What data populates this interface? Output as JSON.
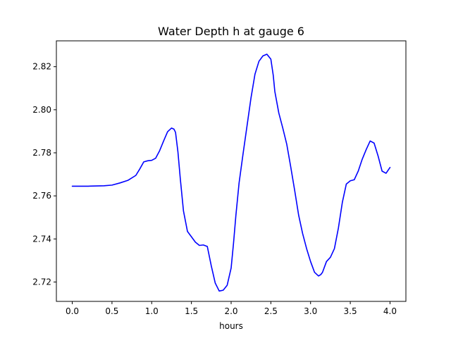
{
  "chart_data": {
    "type": "line",
    "title": "Water Depth h at gauge 6",
    "xlabel": "hours",
    "ylabel": "",
    "xlim": [
      -0.2,
      4.2
    ],
    "ylim": [
      2.711,
      2.832
    ],
    "xticks": [
      0.0,
      0.5,
      1.0,
      1.5,
      2.0,
      2.5,
      3.0,
      3.5,
      4.0
    ],
    "xtick_labels": [
      "0.0",
      "0.5",
      "1.0",
      "1.5",
      "2.0",
      "2.5",
      "3.0",
      "3.5",
      "4.0"
    ],
    "yticks": [
      2.72,
      2.74,
      2.76,
      2.78,
      2.8,
      2.82
    ],
    "ytick_labels": [
      "2.72",
      "2.74",
      "2.76",
      "2.78",
      "2.80",
      "2.82"
    ],
    "grid": false,
    "series": [
      {
        "color": "#0000ff",
        "x": [
          0.0,
          0.2,
          0.4,
          0.5,
          0.6,
          0.7,
          0.8,
          0.85,
          0.9,
          0.95,
          1.0,
          1.05,
          1.1,
          1.15,
          1.2,
          1.25,
          1.28,
          1.3,
          1.33,
          1.36,
          1.4,
          1.45,
          1.5,
          1.55,
          1.6,
          1.65,
          1.7,
          1.75,
          1.8,
          1.85,
          1.9,
          1.95,
          2.0,
          2.03,
          2.06,
          2.1,
          2.15,
          2.2,
          2.25,
          2.3,
          2.35,
          2.4,
          2.45,
          2.5,
          2.53,
          2.55,
          2.6,
          2.65,
          2.7,
          2.75,
          2.8,
          2.85,
          2.9,
          2.95,
          3.0,
          3.05,
          3.1,
          3.13,
          3.15,
          3.2,
          3.25,
          3.3,
          3.35,
          3.4,
          3.45,
          3.5,
          3.55,
          3.6,
          3.65,
          3.7,
          3.75,
          3.8,
          3.85,
          3.9,
          3.95,
          4.0
        ],
        "y": [
          2.7645,
          2.7645,
          2.7647,
          2.765,
          2.766,
          2.7672,
          2.7695,
          2.7725,
          2.7758,
          2.7763,
          2.7765,
          2.7775,
          2.781,
          2.7855,
          2.7898,
          2.7915,
          2.791,
          2.7895,
          2.7805,
          2.768,
          2.753,
          2.7435,
          2.741,
          2.7385,
          2.737,
          2.7372,
          2.7365,
          2.7275,
          2.7195,
          2.7158,
          2.7162,
          2.7185,
          2.7265,
          2.738,
          2.751,
          2.766,
          2.7795,
          2.7925,
          2.8055,
          2.8165,
          2.8225,
          2.825,
          2.8258,
          2.8235,
          2.816,
          2.8085,
          2.7985,
          2.7915,
          2.784,
          2.7735,
          2.7625,
          2.751,
          2.7425,
          2.7355,
          2.7295,
          2.7245,
          2.7228,
          2.7235,
          2.7245,
          2.7295,
          2.7315,
          2.7355,
          2.745,
          2.757,
          2.7655,
          2.767,
          2.7675,
          2.7715,
          2.777,
          2.7815,
          2.7855,
          2.7845,
          2.7785,
          2.7715,
          2.7705,
          2.7732
        ]
      }
    ]
  }
}
